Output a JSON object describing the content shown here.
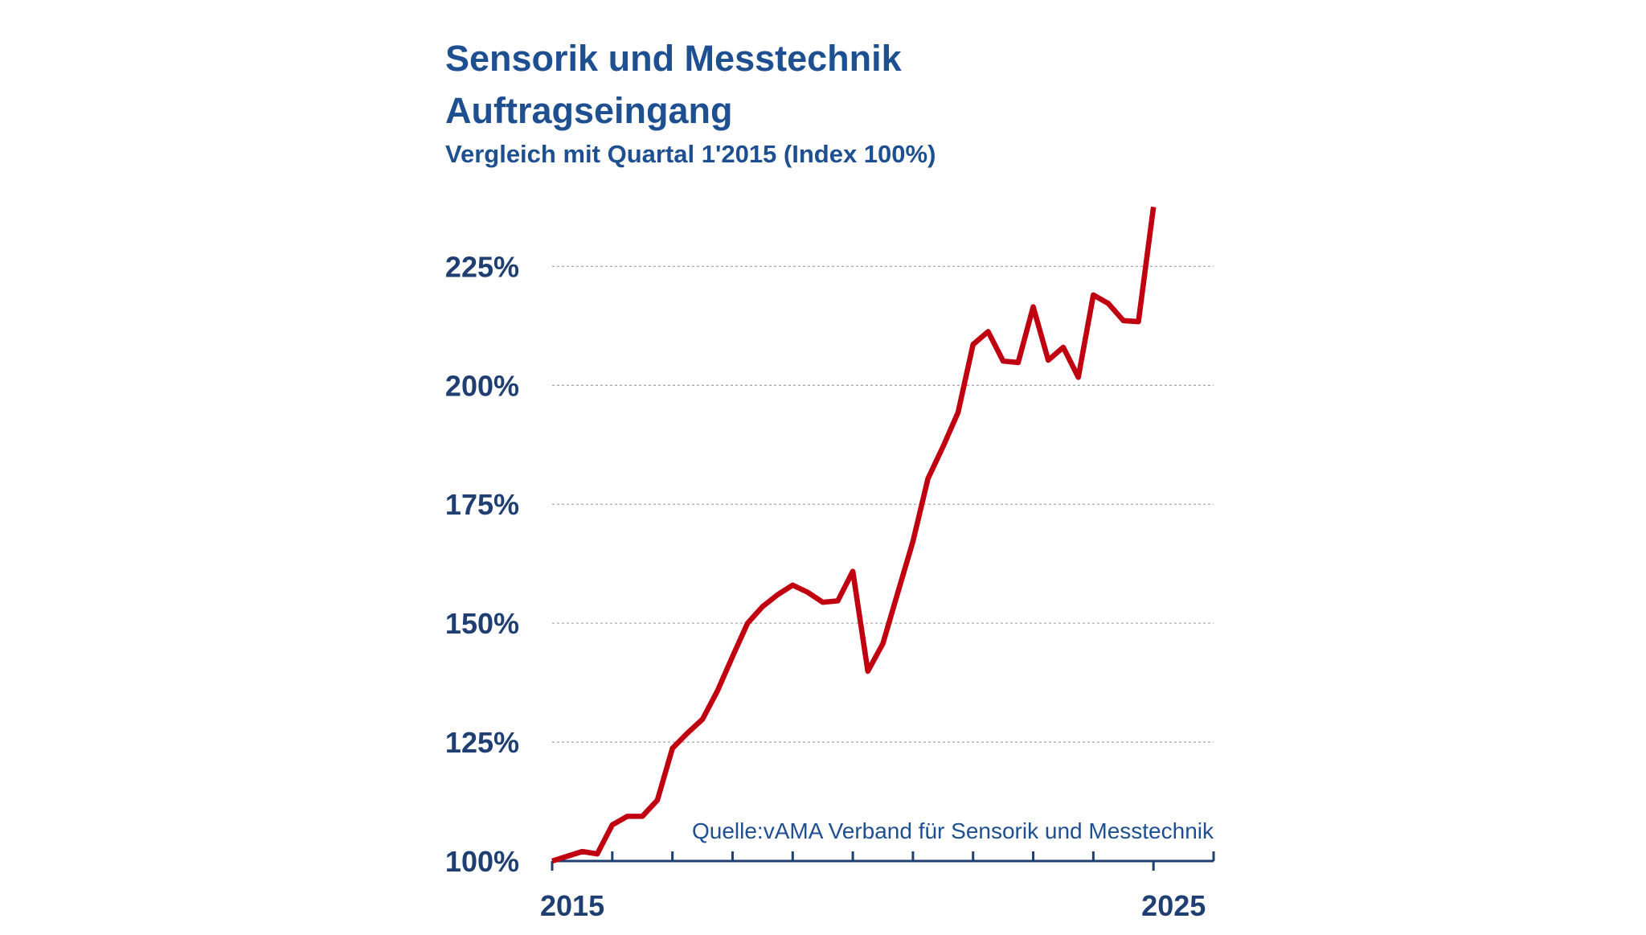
{
  "chart_data": {
    "type": "line",
    "title": "Sensorik und Messtechnik",
    "title_line2": "Auftragseingang",
    "subtitle": "Vergleich mit Quartal 1'2015 (Index 100%)",
    "source": "Quelle:vAMA Verband für Sensorik und Messtechnik",
    "x": [
      2015,
      2015.25,
      2015.5,
      2015.75,
      2016,
      2016.25,
      2016.5,
      2016.75,
      2017,
      2017.25,
      2017.5,
      2017.75,
      2018,
      2018.25,
      2018.5,
      2018.75,
      2019,
      2019.25,
      2019.5,
      2019.75,
      2020,
      2020.25,
      2020.5,
      2020.75,
      2021,
      2021.25,
      2021.5,
      2021.75,
      2022,
      2022.25,
      2022.5,
      2022.75,
      2023,
      2023.25,
      2023.5,
      2023.75,
      2024,
      2024.25,
      2024.5,
      2024.75,
      2025
    ],
    "series": [
      {
        "name": "Auftragseingang",
        "color": "#c00010",
        "values": [
          100,
          101,
          102,
          101.5,
          107.6,
          109.4,
          109.4,
          112.8,
          123.7,
          126.9,
          129.8,
          135.8,
          143,
          150,
          153.5,
          156,
          158,
          156.5,
          154.4,
          154.7,
          160.9,
          139.9,
          145.7,
          156.5,
          167.2,
          180.4,
          187.1,
          194.3,
          208.6,
          211.3,
          205.1,
          204.8,
          216.5,
          205.3,
          208,
          201.7,
          219,
          217.2,
          213.6,
          213.4,
          237.5
        ]
      }
    ],
    "xlim": [
      2015,
      2026
    ],
    "xticks": [
      2015,
      2025
    ],
    "xminorticks": [
      2016,
      2017,
      2018,
      2019,
      2020,
      2021,
      2022,
      2023,
      2024,
      2026
    ],
    "ylim": [
      100,
      240
    ],
    "yticks": [
      {
        "value": 100,
        "label": "100%"
      },
      {
        "value": 125,
        "label": "125%"
      },
      {
        "value": 150,
        "label": "150%"
      },
      {
        "value": 175,
        "label": "175%"
      },
      {
        "value": 200,
        "label": "200%"
      },
      {
        "value": 225,
        "label": "225%"
      }
    ],
    "grid": true,
    "axis_color": "#1f3f73"
  }
}
